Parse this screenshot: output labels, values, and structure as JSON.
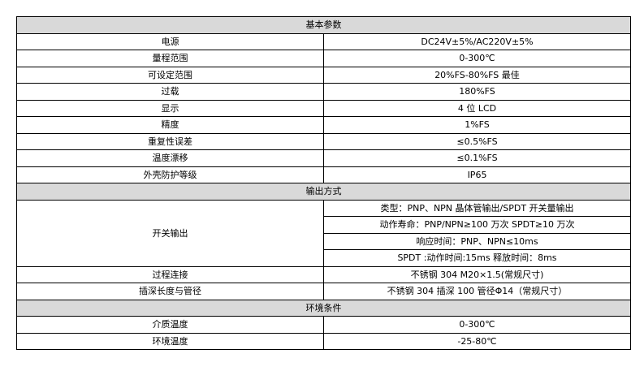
{
  "sections": [
    {
      "title": "基本参数",
      "rows": [
        {
          "label": "电源",
          "value": "DC24V±5%/AC220V±5%"
        },
        {
          "label": "量程范围",
          "value": "0-300℃"
        },
        {
          "label": "可设定范围",
          "value": "20%FS-80%FS 最佳"
        },
        {
          "label": "过载",
          "value": "180%FS"
        },
        {
          "label": "显示",
          "value": "4 位 LCD"
        },
        {
          "label": "精度",
          "value": "1%FS"
        },
        {
          "label": "重复性误差",
          "value": "≤0.5%FS"
        },
        {
          "label": "温度漂移",
          "value": "≤0.1%FS"
        },
        {
          "label": "外壳防护等级",
          "value": "IP65"
        }
      ]
    },
    {
      "title": "输出方式",
      "switch_output": {
        "label": "开关输出",
        "values": [
          "类型：PNP、NPN 晶体管输出/SPDT 开关量输出",
          "动作寿命：PNP/NPN≥100 万次   SPDT≥10 万次",
          "响应时间：PNP、NPN≤10ms",
          "SPDT :动作时间:15ms  释放时间：8ms"
        ]
      },
      "rows": [
        {
          "label": "过程连接",
          "value": "不锈钢 304   M20×1.5(常规尺寸)"
        },
        {
          "label": "插深长度与管径",
          "value": "不锈钢 304 插深 100 管径Φ14（常规尺寸）"
        }
      ]
    },
    {
      "title": "环境条件",
      "rows": [
        {
          "label": "介质温度",
          "value": "0-300℃"
        },
        {
          "label": "环境温度",
          "value": "-25-80℃"
        }
      ]
    }
  ],
  "colors": {
    "section_header_bg": "#d9d9d9",
    "border": "#000000"
  }
}
